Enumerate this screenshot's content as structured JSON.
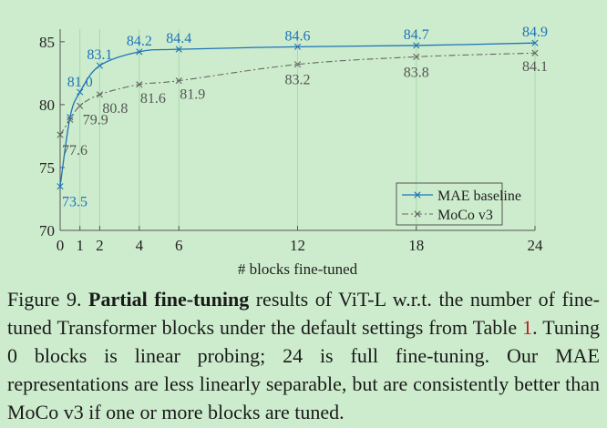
{
  "chart_data": {
    "type": "line",
    "xlabel": "# blocks fine-tuned",
    "ylabel": "",
    "x_ticks": [
      0,
      1,
      2,
      4,
      6,
      12,
      18,
      24
    ],
    "y_ticks": [
      70,
      75,
      80,
      85
    ],
    "xlim": [
      0,
      24
    ],
    "ylim": [
      70,
      86
    ],
    "legend_position": "bottom-right",
    "series": [
      {
        "name": "MAE baseline",
        "x": [
          0,
          0.5,
          1,
          2,
          4,
          6,
          12,
          18,
          24
        ],
        "y": [
          73.5,
          79.0,
          81.0,
          83.1,
          84.2,
          84.4,
          84.6,
          84.7,
          84.9
        ],
        "labeled": [
          {
            "x": 0,
            "text": "73.5"
          },
          {
            "x": 1,
            "text": "81.0"
          },
          {
            "x": 2,
            "text": "83.1"
          },
          {
            "x": 4,
            "text": "84.2"
          },
          {
            "x": 6,
            "text": "84.4"
          },
          {
            "x": 12,
            "text": "84.6"
          },
          {
            "x": 18,
            "text": "84.7"
          },
          {
            "x": 24,
            "text": "84.9"
          }
        ],
        "color": "#1f73b8",
        "style": "solid"
      },
      {
        "name": "MoCo v3",
        "x": [
          0,
          0.5,
          1,
          2,
          4,
          6,
          12,
          18,
          24
        ],
        "y": [
          77.6,
          78.8,
          79.9,
          80.8,
          81.6,
          81.9,
          83.2,
          83.8,
          84.1
        ],
        "labeled": [
          {
            "x": 0,
            "text": "77.6"
          },
          {
            "x": 1,
            "text": "79.9"
          },
          {
            "x": 2,
            "text": "80.8"
          },
          {
            "x": 4,
            "text": "81.6"
          },
          {
            "x": 6,
            "text": "81.9"
          },
          {
            "x": 12,
            "text": "83.2"
          },
          {
            "x": 18,
            "text": "83.8"
          },
          {
            "x": 24,
            "text": "84.1"
          }
        ],
        "color": "#666666",
        "style": "dash-dot"
      }
    ]
  },
  "caption": {
    "prefix": "Figure 9.",
    "bold": "Partial fine-tuning",
    "text1": "results of ViT-L w.r.t. the number of fine-tuned Transformer blocks under the default settings from Table",
    "ref": "1",
    "text2": ". Tuning 0 blocks is linear probing; 24 is full fine-tuning. Our MAE representations are less linearly separable, but are consistently better than MoCo v3 if one or more blocks are tuned."
  }
}
